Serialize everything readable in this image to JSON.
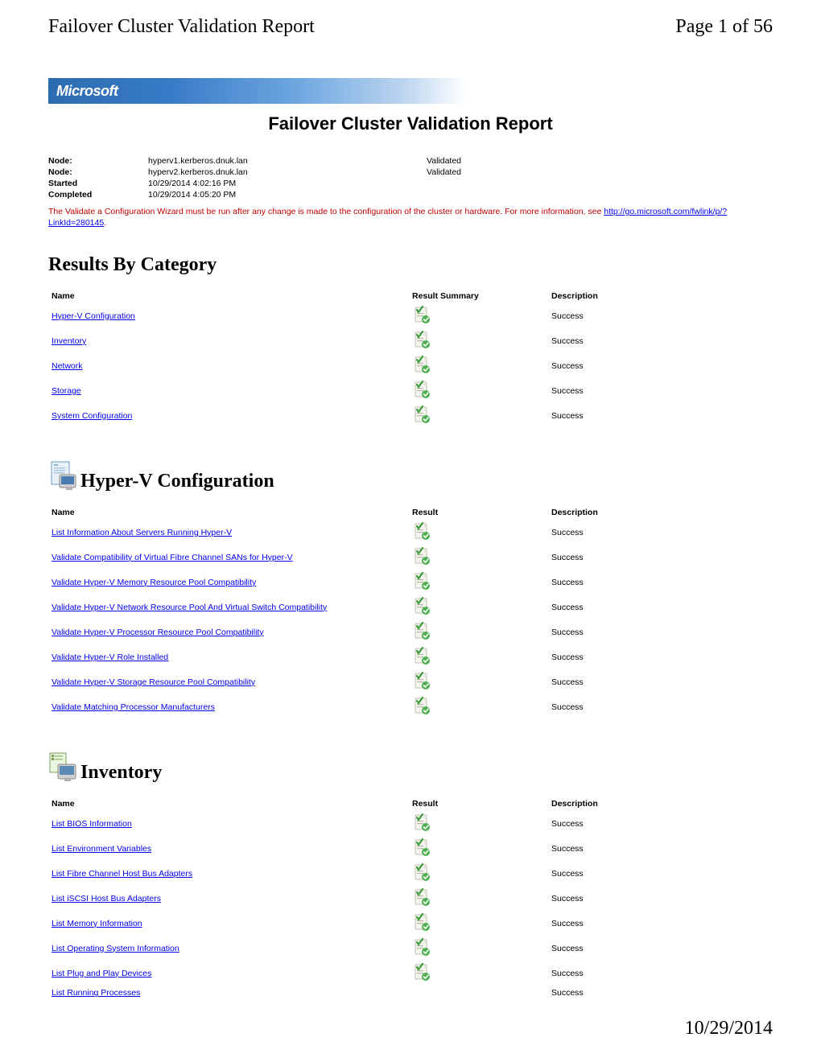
{
  "header": {
    "left": "Failover Cluster Validation Report",
    "right": "Page 1 of 56"
  },
  "logo": "Microsoft",
  "title": "Failover Cluster Validation Report",
  "info": {
    "node1_label": "Node:",
    "node1_value": "hyperv1.kerberos.dnuk.lan",
    "node1_status": "Validated",
    "node2_label": "Node:",
    "node2_value": "hyperv2.kerberos.dnuk.lan",
    "node2_status": "Validated",
    "started_label": "Started",
    "started_value": "10/29/2014 4:02:16 PM",
    "completed_label": "Completed",
    "completed_value": "10/29/2014 4:05:20 PM"
  },
  "warning": {
    "text_before": "The Validate a Configuration Wizard must be run after any change is made to the configuration of the cluster or hardware. For more information, see ",
    "link": "http://go.microsoft.com/fwlink/p/?LinkId=280145",
    "text_after": "."
  },
  "sections": {
    "results_title": "Results By Category",
    "hyperv_title": "Hyper-V Configuration",
    "inventory_title": "Inventory"
  },
  "table_headers": {
    "name": "Name",
    "result_summary": "Result Summary",
    "result": "Result",
    "description": "Description"
  },
  "results_by_category": [
    {
      "name": "Hyper-V Configuration",
      "desc": "Success"
    },
    {
      "name": "Inventory",
      "desc": "Success"
    },
    {
      "name": "Network",
      "desc": "Success"
    },
    {
      "name": "Storage",
      "desc": "Success"
    },
    {
      "name": "System Configuration",
      "desc": "Success"
    }
  ],
  "hyperv_tests": [
    {
      "name": "List Information About Servers Running Hyper-V",
      "desc": "Success"
    },
    {
      "name": "Validate Compatibility of Virtual Fibre Channel SANs for Hyper-V",
      "desc": "Success"
    },
    {
      "name": "Validate Hyper-V Memory Resource Pool Compatibility",
      "desc": "Success"
    },
    {
      "name": "Validate Hyper-V Network Resource Pool And Virtual Switch Compatibility",
      "desc": "Success"
    },
    {
      "name": "Validate Hyper-V Processor Resource Pool Compatibility",
      "desc": "Success"
    },
    {
      "name": "Validate Hyper-V Role Installed",
      "desc": "Success"
    },
    {
      "name": "Validate Hyper-V Storage Resource Pool Compatibility",
      "desc": "Success"
    },
    {
      "name": "Validate Matching Processor Manufacturers",
      "desc": "Success"
    }
  ],
  "inventory_tests": [
    {
      "name": "List BIOS Information",
      "desc": "Success"
    },
    {
      "name": "List Environment Variables",
      "desc": "Success"
    },
    {
      "name": "List Fibre Channel Host Bus Adapters",
      "desc": "Success"
    },
    {
      "name": "List iSCSI Host Bus Adapters",
      "desc": "Success"
    },
    {
      "name": "List Memory Information",
      "desc": "Success"
    },
    {
      "name": "List Operating System Information",
      "desc": "Success"
    },
    {
      "name": "List Plug and Play Devices",
      "desc": "Success"
    },
    {
      "name": "List Running Processes",
      "desc": "Success"
    }
  ],
  "footer_date": "10/29/2014"
}
